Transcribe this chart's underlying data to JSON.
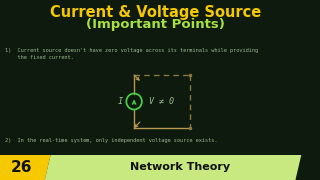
{
  "bg_color": "#0d1a0d",
  "title_line1": "Current & Voltage Source",
  "title_line2": "(Important Points)",
  "title_color1": "#f5c800",
  "title_color2": "#a8e040",
  "point1_line1": "1)  Current source doesn't have zero voltage across its terminals while providing",
  "point1_line2": "    the fixed current.",
  "point2_text": "2)  In the real-time system, only independent voltage source exists.",
  "point_color": "#9ab890",
  "badge_number": "26",
  "badge_bg": "#f5c800",
  "badge_text_color": "#111111",
  "footer_text": "Network Theory",
  "footer_bg": "#c8e880",
  "footer_text_color": "#111111",
  "circuit_solid_color": "#b89850",
  "circuit_dash_color": "#8a7840",
  "circle_color": "#44cc44",
  "label_color": "#9ab890",
  "title1_fontsize": 10.5,
  "title2_fontsize": 9.5,
  "point_fontsize": 3.8,
  "footer_fontsize": 8.0,
  "badge_fontsize": 11
}
